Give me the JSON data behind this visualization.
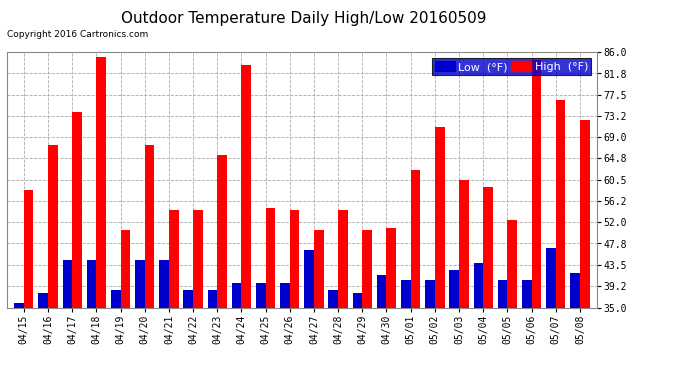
{
  "title": "Outdoor Temperature Daily High/Low 20160509",
  "copyright": "Copyright 2016 Cartronics.com",
  "legend_low": "Low  (°F)",
  "legend_high": "High  (°F)",
  "dates": [
    "04/15",
    "04/16",
    "04/17",
    "04/18",
    "04/19",
    "04/20",
    "04/21",
    "04/22",
    "04/23",
    "04/24",
    "04/25",
    "04/26",
    "04/27",
    "04/28",
    "04/29",
    "04/30",
    "05/01",
    "05/02",
    "05/03",
    "05/04",
    "05/05",
    "05/06",
    "05/07",
    "05/08"
  ],
  "highs": [
    58.5,
    67.5,
    74.0,
    85.0,
    50.5,
    67.5,
    54.5,
    54.5,
    65.5,
    83.5,
    55.0,
    54.5,
    50.5,
    54.5,
    50.5,
    51.0,
    62.5,
    71.0,
    60.5,
    59.0,
    52.5,
    84.5,
    76.5,
    72.5
  ],
  "lows": [
    36.0,
    38.0,
    44.5,
    44.5,
    38.5,
    44.5,
    44.5,
    38.5,
    38.5,
    40.0,
    40.0,
    40.0,
    46.5,
    38.5,
    38.0,
    41.5,
    40.5,
    40.5,
    42.5,
    44.0,
    40.5,
    40.5,
    47.0,
    42.0
  ],
  "high_color": "#ff0000",
  "low_color": "#0000cc",
  "bg_color": "#ffffff",
  "plot_bg_color": "#ffffff",
  "grid_color": "#aaaaaa",
  "ylim_min": 35.0,
  "ylim_max": 86.0,
  "yticks": [
    35.0,
    39.2,
    43.5,
    47.8,
    52.0,
    56.2,
    60.5,
    64.8,
    69.0,
    73.2,
    77.5,
    81.8,
    86.0
  ],
  "title_fontsize": 11,
  "tick_fontsize": 7,
  "legend_fontsize": 8,
  "bar_width": 0.4
}
